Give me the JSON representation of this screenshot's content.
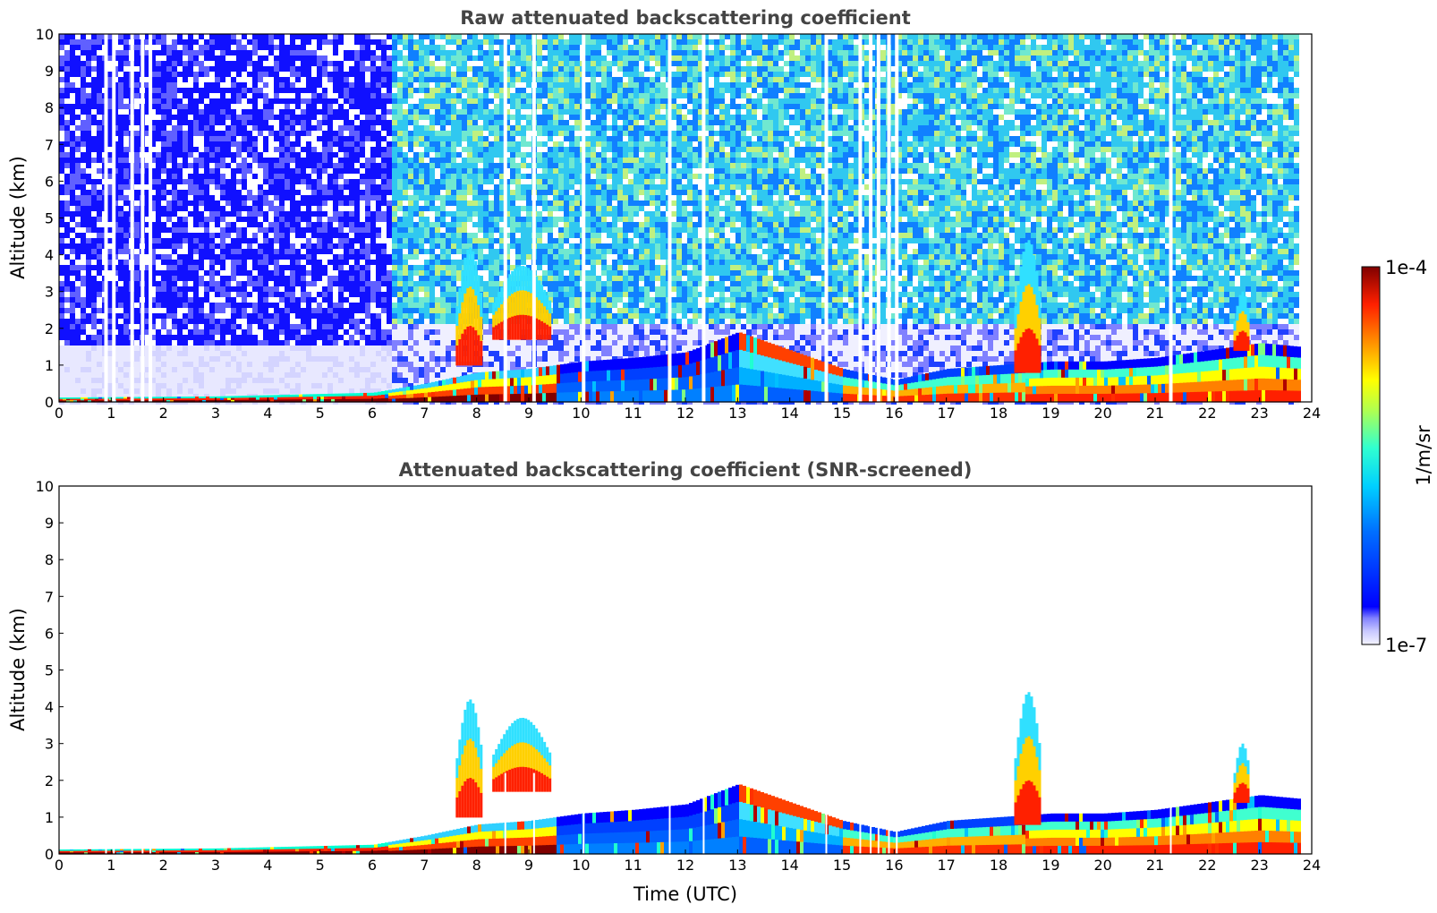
{
  "chart_data": [
    {
      "type": "heatmap",
      "title": "Raw attenuated backscattering coefficient",
      "xlabel": "",
      "ylabel": "Altitude (km)",
      "xlim": [
        0,
        24
      ],
      "ylim": [
        0,
        10
      ],
      "xticks": [
        "0",
        "1",
        "2",
        "3",
        "4",
        "5",
        "6",
        "7",
        "8",
        "9",
        "10",
        "11",
        "12",
        "13",
        "14",
        "15",
        "16",
        "17",
        "18",
        "19",
        "20",
        "21",
        "22",
        "23",
        "24"
      ],
      "yticks": [
        "0",
        "1",
        "2",
        "3",
        "4",
        "5",
        "6",
        "7",
        "8",
        "9",
        "10"
      ],
      "noise": "raw",
      "aerosol_layer_top_km": [
        {
          "t": 0,
          "h": 0.12
        },
        {
          "t": 3,
          "h": 0.15
        },
        {
          "t": 6,
          "h": 0.25
        },
        {
          "t": 7,
          "h": 0.5
        },
        {
          "t": 8,
          "h": 0.8
        },
        {
          "t": 9,
          "h": 0.9
        },
        {
          "t": 10,
          "h": 1.1
        },
        {
          "t": 11,
          "h": 1.2
        },
        {
          "t": 12,
          "h": 1.35
        },
        {
          "t": 13,
          "h": 1.9
        },
        {
          "t": 14,
          "h": 1.4
        },
        {
          "t": 15,
          "h": 0.9
        },
        {
          "t": 16,
          "h": 0.6
        },
        {
          "t": 17,
          "h": 0.9
        },
        {
          "t": 18,
          "h": 1.0
        },
        {
          "t": 19,
          "h": 1.1
        },
        {
          "t": 20,
          "h": 1.1
        },
        {
          "t": 21,
          "h": 1.2
        },
        {
          "t": 22,
          "h": 1.4
        },
        {
          "t": 23,
          "h": 1.6
        },
        {
          "t": 23.75,
          "h": 1.5
        }
      ],
      "cloud_plumes": [
        {
          "t0": 7.6,
          "t1": 8.1,
          "base_km": 1.0,
          "top_km": 4.2
        },
        {
          "t0": 8.3,
          "t1": 9.4,
          "base_km": 1.7,
          "top_km": 3.7
        },
        {
          "t0": 18.3,
          "t1": 18.8,
          "base_km": 0.8,
          "top_km": 4.4
        },
        {
          "t0": 22.5,
          "t1": 22.8,
          "base_km": 1.4,
          "top_km": 3.0
        }
      ],
      "data_gaps_utc": [
        0.9,
        1.05,
        1.4,
        1.6,
        1.75,
        8.55,
        9.1,
        10.05,
        11.7,
        12.35,
        14.7,
        15.35,
        15.55,
        15.7,
        15.9,
        16.05,
        21.3
      ]
    },
    {
      "type": "heatmap",
      "title": "Attenuated backscattering coefficient (SNR-screened)",
      "xlabel": "Time (UTC)",
      "ylabel": "Altitude (km)",
      "xlim": [
        0,
        24
      ],
      "ylim": [
        0,
        10
      ],
      "xticks": [
        "0",
        "1",
        "2",
        "3",
        "4",
        "5",
        "6",
        "7",
        "8",
        "9",
        "10",
        "11",
        "12",
        "13",
        "14",
        "15",
        "16",
        "17",
        "18",
        "19",
        "20",
        "21",
        "22",
        "23",
        "24"
      ],
      "yticks": [
        "0",
        "1",
        "2",
        "3",
        "4",
        "5",
        "6",
        "7",
        "8",
        "9",
        "10"
      ],
      "noise": "screened",
      "aerosol_layer_top_km": [
        {
          "t": 0,
          "h": 0.12
        },
        {
          "t": 3,
          "h": 0.15
        },
        {
          "t": 6,
          "h": 0.25
        },
        {
          "t": 7,
          "h": 0.5
        },
        {
          "t": 8,
          "h": 0.8
        },
        {
          "t": 9,
          "h": 0.9
        },
        {
          "t": 10,
          "h": 1.1
        },
        {
          "t": 11,
          "h": 1.2
        },
        {
          "t": 12,
          "h": 1.35
        },
        {
          "t": 13,
          "h": 1.9
        },
        {
          "t": 14,
          "h": 1.4
        },
        {
          "t": 15,
          "h": 0.9
        },
        {
          "t": 16,
          "h": 0.6
        },
        {
          "t": 17,
          "h": 0.9
        },
        {
          "t": 18,
          "h": 1.0
        },
        {
          "t": 19,
          "h": 1.1
        },
        {
          "t": 20,
          "h": 1.1
        },
        {
          "t": 21,
          "h": 1.2
        },
        {
          "t": 22,
          "h": 1.4
        },
        {
          "t": 23,
          "h": 1.6
        },
        {
          "t": 23.75,
          "h": 1.5
        }
      ],
      "cloud_plumes": [
        {
          "t0": 7.6,
          "t1": 8.1,
          "base_km": 1.0,
          "top_km": 4.2
        },
        {
          "t0": 8.3,
          "t1": 9.4,
          "base_km": 1.7,
          "top_km": 3.7
        },
        {
          "t0": 18.3,
          "t1": 18.8,
          "base_km": 0.8,
          "top_km": 4.4
        },
        {
          "t0": 22.5,
          "t1": 22.8,
          "base_km": 1.4,
          "top_km": 3.0
        }
      ],
      "data_gaps_utc": [
        0.9,
        1.05,
        1.4,
        1.6,
        1.75,
        8.55,
        9.1,
        10.05,
        11.7,
        12.35,
        14.7,
        15.35,
        15.55,
        15.7,
        15.9,
        16.05,
        21.3
      ]
    }
  ],
  "colorbar": {
    "label": "1/m/sr",
    "max_label": "1e-4",
    "min_label": "1e-7",
    "colormap": "jet",
    "colors": [
      "#f0f0ff",
      "#d0d0ff",
      "#9090f0",
      "#0000ff",
      "#0060ff",
      "#00c0ff",
      "#20ffd0",
      "#80ff80",
      "#ffff00",
      "#ffa000",
      "#ff3000",
      "#b00000",
      "#800000"
    ]
  }
}
